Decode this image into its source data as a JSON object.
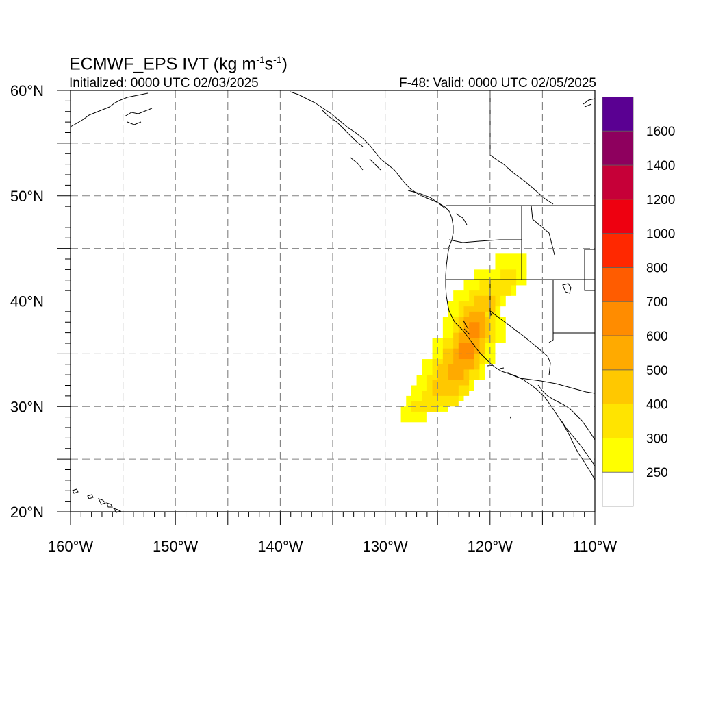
{
  "title": {
    "main": "ECMWF_EPS IVT (kg m",
    "sup1": "-1",
    "mid": "s",
    "sup2": "-1",
    "end": ")"
  },
  "initialized": "Initialized: 0000 UTC 02/03/2025",
  "valid": "F-48: Valid: 0000 UTC 02/05/2025",
  "lat_labels": [
    {
      "lat": 60,
      "text": "60°N"
    },
    {
      "lat": 50,
      "text": "50°N"
    },
    {
      "lat": 40,
      "text": "40°N"
    },
    {
      "lat": 30,
      "text": "30°N"
    },
    {
      "lat": 20,
      "text": "20°N"
    }
  ],
  "lon_labels": [
    {
      "lon": -160,
      "text": "160°W"
    },
    {
      "lon": -150,
      "text": "150°W"
    },
    {
      "lon": -140,
      "text": "140°W"
    },
    {
      "lon": -130,
      "text": "130°W"
    },
    {
      "lon": -120,
      "text": "120°W"
    },
    {
      "lon": -110,
      "text": "110°W"
    }
  ],
  "map_extent": {
    "lon_min": -160,
    "lon_max": -110,
    "lat_min": 20,
    "lat_max": 60
  },
  "grid": {
    "lon_step": 5,
    "lat_step": 5,
    "style": "dashed"
  },
  "colorbar": {
    "levels": [
      {
        "value": "",
        "color": "#ffffff"
      },
      {
        "value": "250",
        "color": "#ffff00"
      },
      {
        "value": "300",
        "color": "#ffe400"
      },
      {
        "value": "400",
        "color": "#ffc800"
      },
      {
        "value": "500",
        "color": "#ffaa00"
      },
      {
        "value": "600",
        "color": "#ff8c00"
      },
      {
        "value": "700",
        "color": "#ff5c00"
      },
      {
        "value": "800",
        "color": "#ff2800"
      },
      {
        "value": "1000",
        "color": "#ee0010"
      },
      {
        "value": "1200",
        "color": "#c60038"
      },
      {
        "value": "1400",
        "color": "#8e005e"
      },
      {
        "value": "1600",
        "color": "#5a0092"
      }
    ]
  },
  "ivt_field": [
    {
      "lon0": -128.5,
      "lon1": -126.0,
      "lat0": 28.5,
      "lat1": 30.0,
      "level": 1
    },
    {
      "lon0": -128.0,
      "lon1": -124.0,
      "lat0": 29.5,
      "lat1": 31.0,
      "level": 1
    },
    {
      "lon0": -127.5,
      "lon1": -122.5,
      "lat0": 30.5,
      "lat1": 32.0,
      "level": 1
    },
    {
      "lon0": -127.0,
      "lon1": -121.5,
      "lat0": 31.5,
      "lat1": 33.0,
      "level": 1
    },
    {
      "lon0": -126.5,
      "lon1": -120.5,
      "lat0": 32.5,
      "lat1": 34.5,
      "level": 1
    },
    {
      "lon0": -125.5,
      "lon1": -119.5,
      "lat0": 34.0,
      "lat1": 36.5,
      "level": 1
    },
    {
      "lon0": -124.5,
      "lon1": -118.5,
      "lat0": 36.0,
      "lat1": 38.5,
      "level": 1
    },
    {
      "lon0": -124.0,
      "lon1": -119.0,
      "lat0": 38.0,
      "lat1": 40.0,
      "level": 1
    },
    {
      "lon0": -123.5,
      "lon1": -118.5,
      "lat0": 39.5,
      "lat1": 41.0,
      "level": 1
    },
    {
      "lon0": -122.5,
      "lon1": -117.5,
      "lat0": 40.5,
      "lat1": 42.0,
      "level": 1
    },
    {
      "lon0": -121.5,
      "lon1": -116.5,
      "lat0": 41.5,
      "lat1": 43.0,
      "level": 1
    },
    {
      "lon0": -119.5,
      "lon1": -116.5,
      "lat0": 42.5,
      "lat1": 44.5,
      "level": 1
    },
    {
      "lon0": -127.5,
      "lon1": -125.0,
      "lat0": 29.5,
      "lat1": 30.5,
      "level": 2
    },
    {
      "lon0": -126.5,
      "lon1": -123.0,
      "lat0": 30.0,
      "lat1": 31.5,
      "level": 2
    },
    {
      "lon0": -126.0,
      "lon1": -122.0,
      "lat0": 31.0,
      "lat1": 33.0,
      "level": 2
    },
    {
      "lon0": -125.5,
      "lon1": -121.0,
      "lat0": 32.5,
      "lat1": 34.5,
      "level": 2
    },
    {
      "lon0": -124.5,
      "lon1": -120.5,
      "lat0": 34.0,
      "lat1": 36.5,
      "level": 2
    },
    {
      "lon0": -123.5,
      "lon1": -119.5,
      "lat0": 36.0,
      "lat1": 38.5,
      "level": 2
    },
    {
      "lon0": -123.0,
      "lon1": -119.5,
      "lat0": 38.0,
      "lat1": 40.0,
      "level": 2
    },
    {
      "lon0": -122.0,
      "lon1": -119.0,
      "lat0": 39.5,
      "lat1": 41.0,
      "level": 2
    },
    {
      "lon0": -121.0,
      "lon1": -118.0,
      "lat0": 40.5,
      "lat1": 42.0,
      "level": 2
    },
    {
      "lon0": -119.0,
      "lon1": -117.5,
      "lat0": 41.5,
      "lat1": 43.0,
      "level": 2
    },
    {
      "lon0": -125.5,
      "lon1": -123.0,
      "lat0": 31.0,
      "lat1": 32.5,
      "level": 3
    },
    {
      "lon0": -125.0,
      "lon1": -122.0,
      "lat0": 32.0,
      "lat1": 34.0,
      "level": 3
    },
    {
      "lon0": -124.5,
      "lon1": -121.0,
      "lat0": 33.5,
      "lat1": 35.5,
      "level": 3
    },
    {
      "lon0": -123.5,
      "lon1": -120.5,
      "lat0": 35.0,
      "lat1": 37.0,
      "level": 3
    },
    {
      "lon0": -123.0,
      "lon1": -120.0,
      "lat0": 36.5,
      "lat1": 38.5,
      "level": 3
    },
    {
      "lon0": -122.5,
      "lon1": -120.5,
      "lat0": 38.0,
      "lat1": 39.5,
      "level": 3
    },
    {
      "lon0": -121.5,
      "lon1": -119.5,
      "lat0": 39.0,
      "lat1": 40.5,
      "level": 3
    },
    {
      "lon0": -124.0,
      "lon1": -122.5,
      "lat0": 32.5,
      "lat1": 34.0,
      "level": 4
    },
    {
      "lon0": -123.5,
      "lon1": -121.5,
      "lat0": 33.5,
      "lat1": 35.5,
      "level": 4
    },
    {
      "lon0": -123.0,
      "lon1": -121.0,
      "lat0": 35.0,
      "lat1": 37.0,
      "level": 4
    },
    {
      "lon0": -122.5,
      "lon1": -120.5,
      "lat0": 36.5,
      "lat1": 38.5,
      "level": 4
    },
    {
      "lon0": -122.0,
      "lon1": -120.5,
      "lat0": 38.0,
      "lat1": 39.0,
      "level": 4
    },
    {
      "lon0": -123.0,
      "lon1": -121.5,
      "lat0": 34.5,
      "lat1": 36.0,
      "level": 5
    },
    {
      "lon0": -122.0,
      "lon1": -121.0,
      "lat0": 36.5,
      "lat1": 38.0,
      "level": 5
    }
  ]
}
